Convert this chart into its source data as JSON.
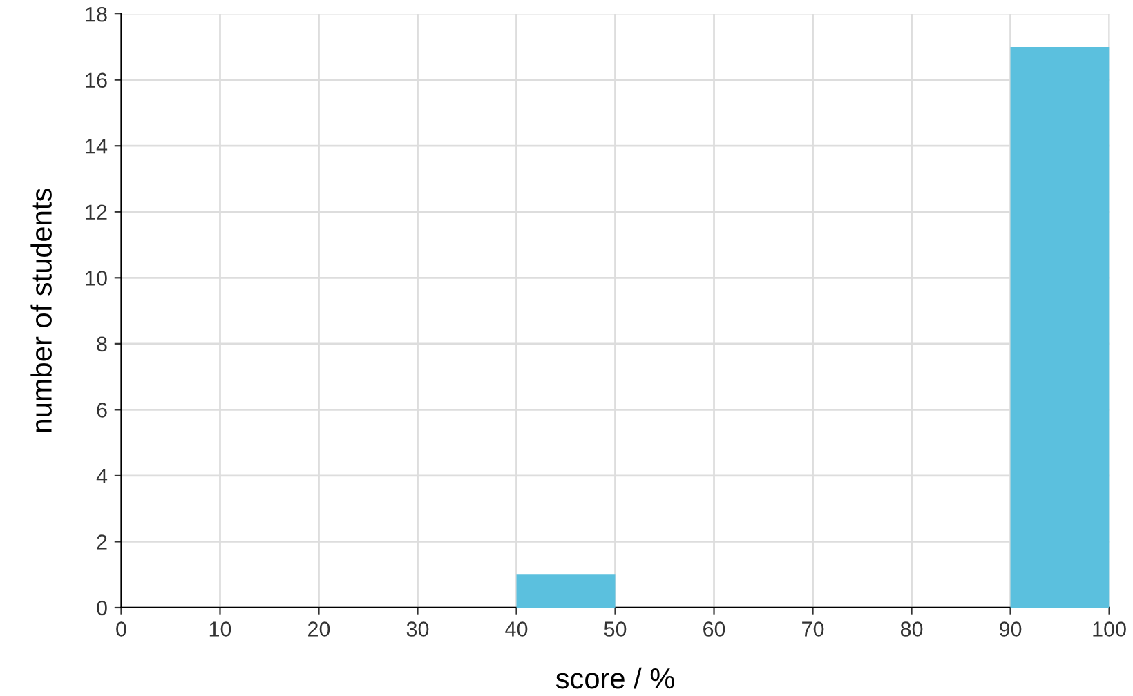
{
  "chart_data": {
    "type": "histogram",
    "xlabel": "score / %",
    "ylabel": "number of students",
    "bins": [
      0,
      10,
      20,
      30,
      40,
      50,
      60,
      70,
      80,
      90,
      100
    ],
    "values": [
      0,
      0,
      0,
      0,
      1,
      0,
      0,
      0,
      0,
      17
    ],
    "color": "#5bc0de",
    "xlim": [
      0,
      100
    ],
    "xticks": [
      0,
      10,
      20,
      30,
      40,
      50,
      60,
      70,
      80,
      90,
      100
    ],
    "ylim": [
      0,
      18
    ],
    "yticks": [
      0,
      2,
      4,
      6,
      8,
      10,
      12,
      14,
      16,
      18
    ],
    "grid": true,
    "legend": false
  }
}
